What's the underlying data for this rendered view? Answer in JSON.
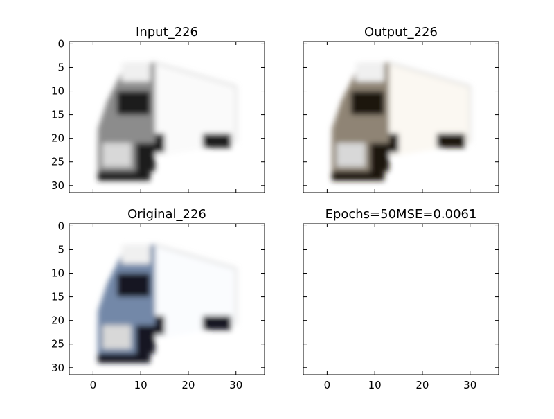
{
  "chart_data": [
    {
      "type": "image",
      "title": "Input_226",
      "xlim": [
        -5,
        36
      ],
      "ylim": [
        31.5,
        -0.5
      ],
      "xticks": [
        0,
        10,
        20,
        30
      ],
      "yticks": [
        0,
        5,
        10,
        15,
        20,
        25,
        30
      ],
      "show_xtick_labels": false,
      "show_ytick_labels": true,
      "image_extent": [
        -0.5,
        31.5,
        31.5,
        -0.5
      ],
      "image_content": "blurred 32x32 grayscale image of a white semi-truck with dark cab windows and wheels",
      "colors": {
        "cab": "#1a1a1a",
        "trailer": "#fafafa",
        "body": "#8c8c8c"
      }
    },
    {
      "type": "image",
      "title": "Output_226",
      "xlim": [
        -5,
        36
      ],
      "ylim": [
        31.5,
        -0.5
      ],
      "xticks": [
        0,
        10,
        20,
        30
      ],
      "yticks": [
        0,
        5,
        10,
        15,
        20,
        25,
        30
      ],
      "show_xtick_labels": false,
      "show_ytick_labels": false,
      "image_extent": [
        -0.5,
        31.5,
        31.5,
        -0.5
      ],
      "image_content": "reconstructed 32x32 image of the semi-truck with slight warm/sepia tint",
      "colors": {
        "cab": "#1e1610",
        "trailer": "#fbf8f2",
        "body": "#8f8475"
      }
    },
    {
      "type": "image",
      "title": "Original_226",
      "xlim": [
        -5,
        36
      ],
      "ylim": [
        31.5,
        -0.5
      ],
      "xticks": [
        0,
        10,
        20,
        30
      ],
      "yticks": [
        0,
        5,
        10,
        15,
        20,
        25,
        30
      ],
      "show_xtick_labels": true,
      "show_ytick_labels": true,
      "image_extent": [
        -0.5,
        31.5,
        31.5,
        -0.5
      ],
      "image_content": "original 32x32 color image of the semi-truck with a light-blue cab",
      "colors": {
        "cab": "#121820",
        "trailer": "#fafcfe",
        "body": "#7388a8"
      }
    },
    {
      "type": "empty",
      "title": "Epochs=50MSE=0.0061",
      "xlim": [
        -5,
        36
      ],
      "ylim": [
        31.5,
        -0.5
      ],
      "xticks": [
        0,
        10,
        20,
        30
      ],
      "yticks": [
        0,
        5,
        10,
        15,
        20,
        25,
        30
      ],
      "show_xtick_labels": true,
      "show_ytick_labels": false
    }
  ]
}
